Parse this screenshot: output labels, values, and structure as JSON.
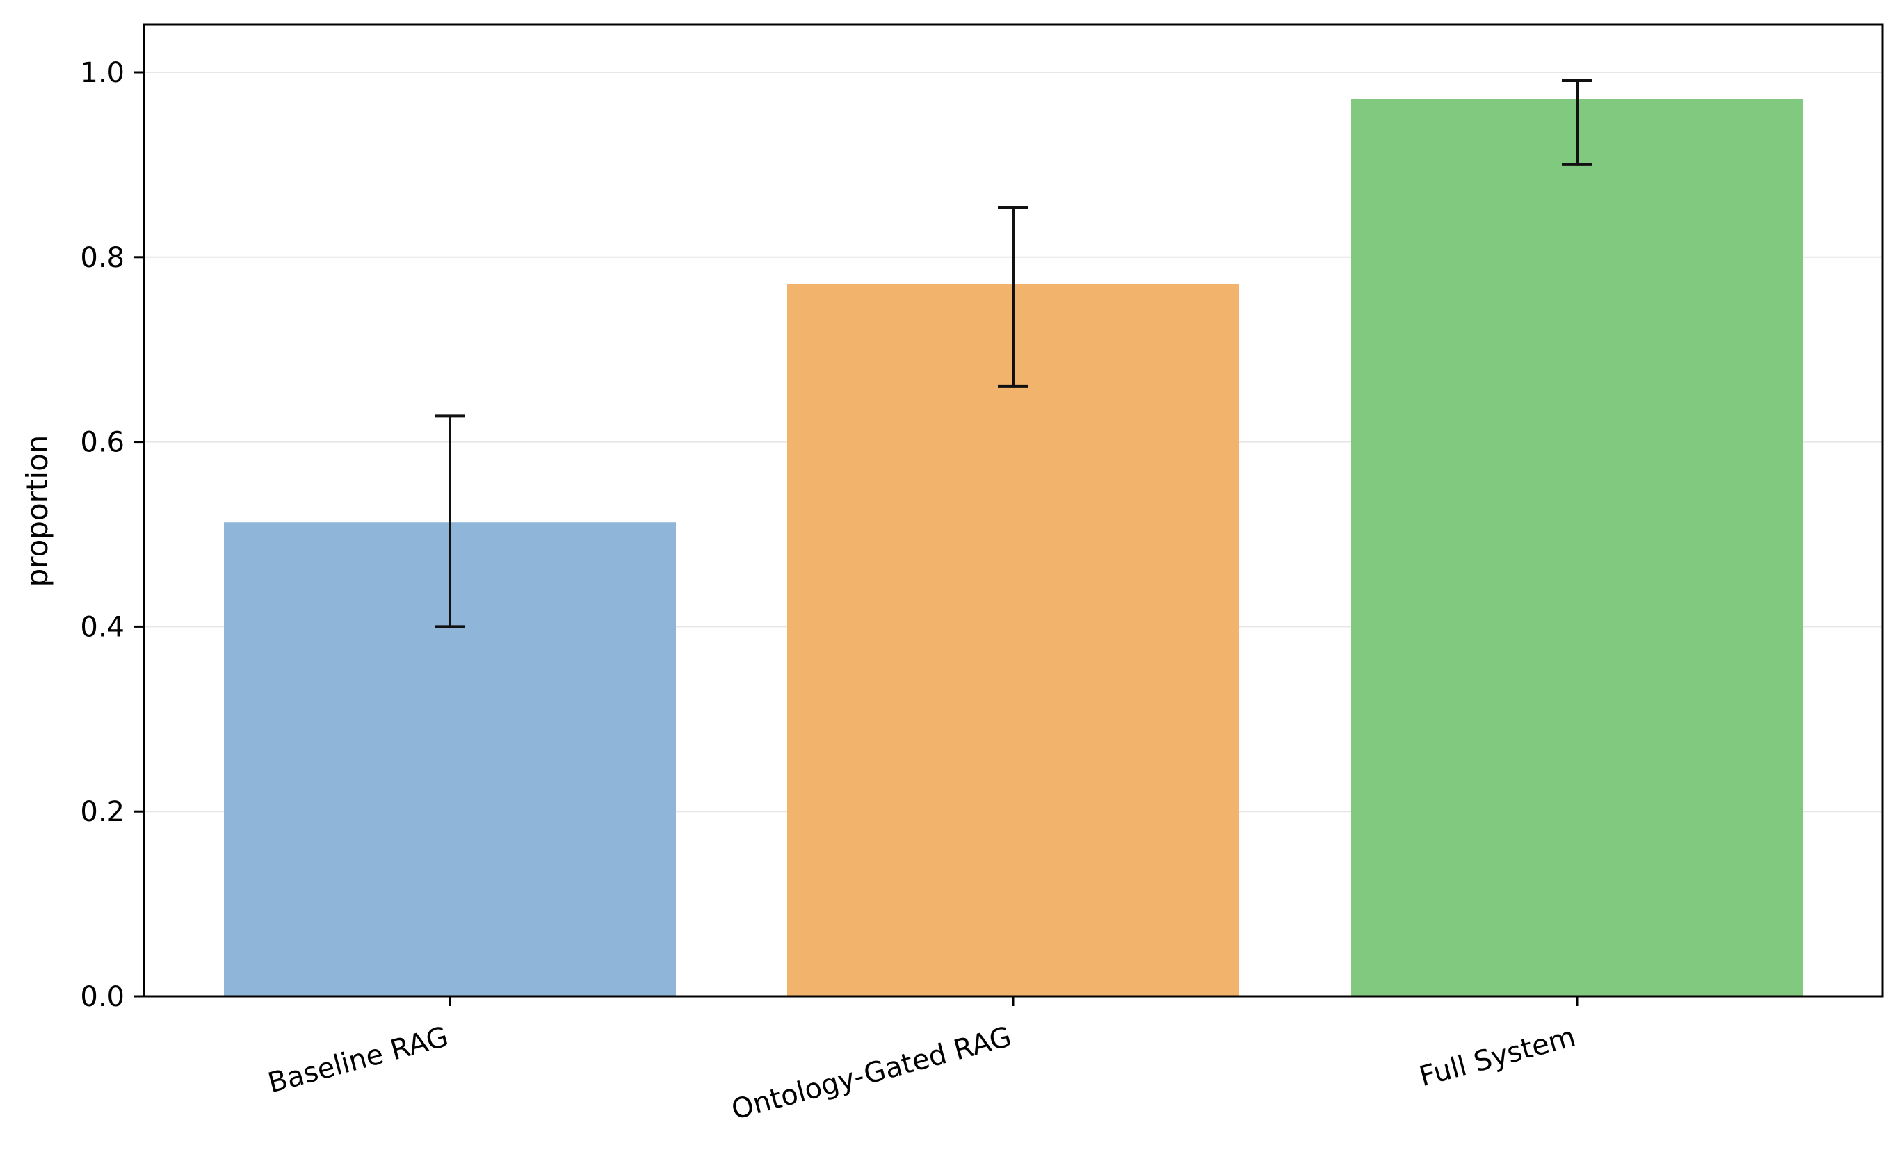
{
  "chart_data": {
    "type": "bar",
    "title": "",
    "xlabel": "",
    "ylabel": "proportion",
    "categories": [
      "Baseline RAG",
      "Ontology-Gated RAG",
      "Full System"
    ],
    "values": [
      0.513,
      0.771,
      0.971
    ],
    "error_low": [
      0.4,
      0.66,
      0.9
    ],
    "error_high": [
      0.628,
      0.854,
      0.991
    ],
    "colors": [
      "#8fb5d9",
      "#f2b36c",
      "#80c97e"
    ],
    "ylim": [
      0,
      1.05
    ],
    "yticks": [
      0.0,
      0.2,
      0.4,
      0.6,
      0.8,
      1.0
    ],
    "ytick_labels": [
      "0.0",
      "0.2",
      "0.4",
      "0.6",
      "0.8",
      "1.0"
    ],
    "grid": "horizontal",
    "grid_color": "#e6e6e6",
    "error_color": "#111111"
  }
}
